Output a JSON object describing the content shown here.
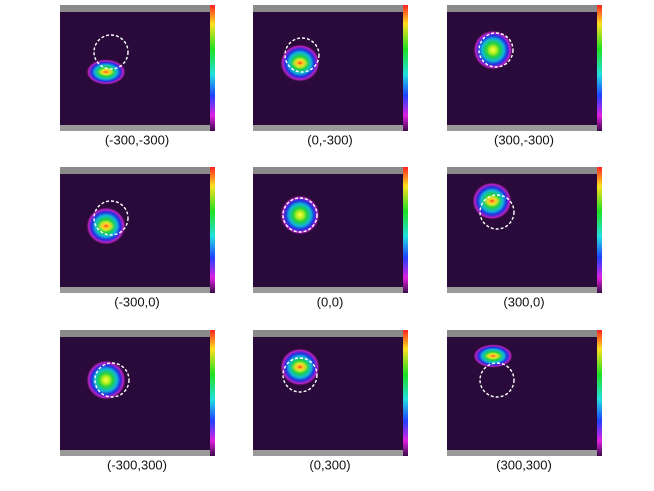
{
  "panels": [
    {
      "label": "(-300,-300)"
    },
    {
      "label": "(0,-300)"
    },
    {
      "label": "(300,-300)"
    },
    {
      "label": "(-300,0)"
    },
    {
      "label": "(0,0)"
    },
    {
      "label": "(300,0)"
    },
    {
      "label": "(-300,300)"
    },
    {
      "label": "(0,300)"
    },
    {
      "label": "(300,300)"
    }
  ]
}
